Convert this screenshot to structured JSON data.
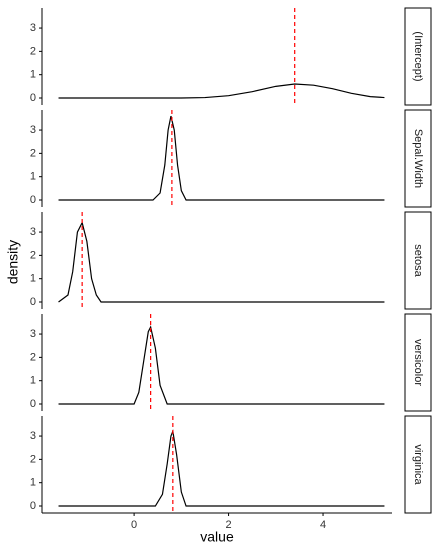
{
  "chart_data": {
    "type": "line",
    "x_label": "value",
    "y_label": "density",
    "xlim": [
      -1.95,
      5.46
    ],
    "xticks": [
      0,
      2,
      4
    ],
    "color": "#000000",
    "reference_color": "#ff0000",
    "panels": [
      {
        "label": "(Intercept)",
        "reference_line": 3.4,
        "ylim": [
          -0.3,
          3.86
        ],
        "yticks": [
          0,
          1,
          2,
          3
        ],
        "x": [
          -1.6,
          0,
          1,
          1.5,
          2,
          2.5,
          3,
          3.4,
          3.8,
          4.2,
          4.6,
          5,
          5.3
        ],
        "values": [
          0,
          0,
          0,
          0.02,
          0.1,
          0.27,
          0.5,
          0.6,
          0.55,
          0.4,
          0.2,
          0.06,
          0.02
        ]
      },
      {
        "label": "Sepal.Width",
        "reference_line": 0.8,
        "ylim": [
          -0.3,
          3.86
        ],
        "yticks": [
          0,
          1,
          2,
          3
        ],
        "x": [
          -1.6,
          0.4,
          0.55,
          0.65,
          0.72,
          0.78,
          0.85,
          0.92,
          1.0,
          1.1,
          5.3
        ],
        "values": [
          0,
          0,
          0.3,
          1.5,
          3.0,
          3.6,
          3.0,
          1.5,
          0.4,
          0,
          0
        ]
      },
      {
        "label": "setosa",
        "reference_line": -1.1,
        "ylim": [
          -0.3,
          3.86
        ],
        "yticks": [
          0,
          1,
          2,
          3
        ],
        "x": [
          -1.6,
          -1.4,
          -1.3,
          -1.2,
          -1.1,
          -1.0,
          -0.9,
          -0.8,
          -0.7,
          5.3
        ],
        "values": [
          0,
          0.3,
          1.3,
          3.0,
          3.4,
          2.6,
          1.0,
          0.3,
          0,
          0
        ]
      },
      {
        "label": "versicolor",
        "reference_line": 0.35,
        "ylim": [
          -0.3,
          3.86
        ],
        "yticks": [
          0,
          1,
          2,
          3
        ],
        "x": [
          -1.6,
          0,
          0.1,
          0.2,
          0.3,
          0.35,
          0.45,
          0.55,
          0.7,
          5.3
        ],
        "values": [
          0,
          0,
          0.5,
          1.8,
          3.1,
          3.3,
          2.4,
          0.8,
          0,
          0
        ]
      },
      {
        "label": "virginica",
        "reference_line": 0.82,
        "ylim": [
          -0.3,
          3.86
        ],
        "yticks": [
          0,
          1,
          2,
          3
        ],
        "x": [
          -1.6,
          0.45,
          0.6,
          0.7,
          0.78,
          0.82,
          0.9,
          1.0,
          1.1,
          5.3
        ],
        "values": [
          0,
          0,
          0.5,
          1.8,
          3.0,
          3.2,
          2.2,
          0.6,
          0,
          0
        ]
      }
    ]
  }
}
